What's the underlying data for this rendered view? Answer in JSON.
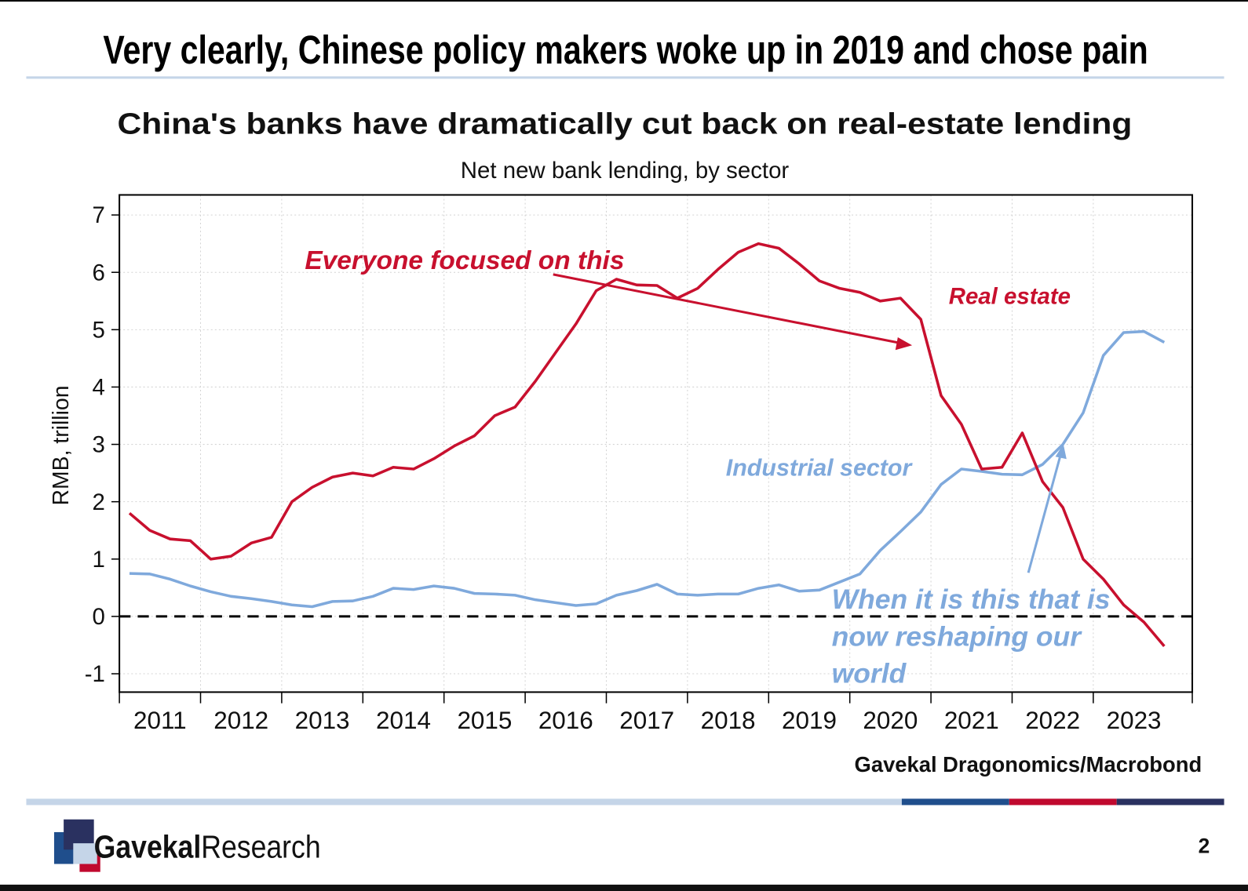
{
  "slide": {
    "title": "Very clearly, Chinese policy makers woke up in 2019 and chose pain",
    "page_number": "2",
    "logo": {
      "brand": "Gavekal",
      "product": "Research"
    }
  },
  "chart_data": {
    "type": "line",
    "title": "China's banks have dramatically cut back on real-estate lending",
    "subtitle": "Net new bank lending, by sector",
    "y_label": "RMB, trillion",
    "source": "Gavekal Dragonomics/Macrobond",
    "annotations": {
      "focus": "Everyone focused on this",
      "real_estate": "Real estate",
      "industrial": "Industrial sector",
      "reshaping": [
        "When it is this that is",
        "now reshaping our",
        "world"
      ]
    },
    "x": [
      2011.125,
      2011.375,
      2011.625,
      2011.875,
      2012.125,
      2012.375,
      2012.625,
      2012.875,
      2013.125,
      2013.375,
      2013.625,
      2013.875,
      2014.125,
      2014.375,
      2014.625,
      2014.875,
      2015.125,
      2015.375,
      2015.625,
      2015.875,
      2016.125,
      2016.375,
      2016.625,
      2016.875,
      2017.125,
      2017.375,
      2017.625,
      2017.875,
      2018.125,
      2018.375,
      2018.625,
      2018.875,
      2019.125,
      2019.375,
      2019.625,
      2019.875,
      2020.125,
      2020.375,
      2020.625,
      2020.875,
      2021.125,
      2021.375,
      2021.625,
      2021.875,
      2022.125,
      2022.375,
      2022.625,
      2022.875,
      2023.125,
      2023.375,
      2023.625,
      2023.875
    ],
    "series": [
      {
        "name": "Real estate",
        "color": "#c8102e",
        "values": [
          1.8,
          1.5,
          1.35,
          1.32,
          1.0,
          1.05,
          1.28,
          1.38,
          2.0,
          2.25,
          2.43,
          2.5,
          2.45,
          2.6,
          2.57,
          2.75,
          2.97,
          3.15,
          3.5,
          3.65,
          4.1,
          4.6,
          5.1,
          5.68,
          5.88,
          5.78,
          5.77,
          5.55,
          5.72,
          6.05,
          6.35,
          6.5,
          6.42,
          6.15,
          5.85,
          5.72,
          5.65,
          5.5,
          5.55,
          5.18,
          3.85,
          3.35,
          2.57,
          2.6,
          3.2,
          2.35,
          1.9,
          1.0,
          0.65,
          0.2,
          -0.1,
          -0.52
        ]
      },
      {
        "name": "Industrial sector",
        "color": "#7fa9dc",
        "values": [
          0.75,
          0.74,
          0.65,
          0.53,
          0.43,
          0.35,
          0.31,
          0.26,
          0.2,
          0.17,
          0.26,
          0.27,
          0.35,
          0.49,
          0.47,
          0.53,
          0.49,
          0.4,
          0.39,
          0.37,
          0.29,
          0.24,
          0.19,
          0.22,
          0.37,
          0.45,
          0.56,
          0.39,
          0.37,
          0.39,
          0.39,
          0.49,
          0.55,
          0.44,
          0.46,
          0.6,
          0.74,
          1.15,
          1.48,
          1.82,
          2.3,
          2.57,
          2.53,
          2.48,
          2.47,
          2.65,
          3.0,
          3.55,
          4.55,
          4.95,
          4.97,
          4.78
        ]
      }
    ],
    "xlim": [
      2011,
      2024.22
    ],
    "xticks": [
      2011,
      2012,
      2013,
      2014,
      2015,
      2016,
      2017,
      2018,
      2019,
      2020,
      2021,
      2022,
      2023
    ],
    "ylim": [
      -1.32,
      7.35
    ],
    "yticks": [
      -1,
      0,
      1,
      2,
      3,
      4,
      5,
      6,
      7
    ],
    "zero_line": 0,
    "grid": true
  }
}
